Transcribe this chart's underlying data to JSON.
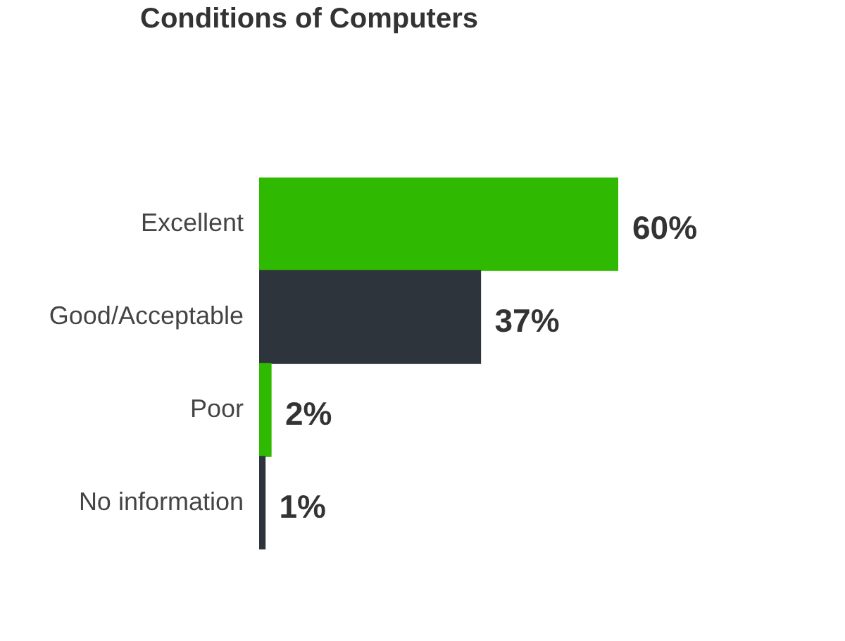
{
  "chart_data": {
    "type": "bar",
    "title": "Conditions of Computers",
    "orientation": "horizontal",
    "categories": [
      "Excellent",
      "Good/Acceptable",
      "Poor",
      "No information"
    ],
    "values": [
      60,
      37,
      2,
      1
    ],
    "colors": [
      "#2fb900",
      "#2e343b",
      "#2fb900",
      "#2e343b"
    ],
    "value_labels": [
      "60%",
      "37%",
      "2%",
      "1%"
    ]
  }
}
